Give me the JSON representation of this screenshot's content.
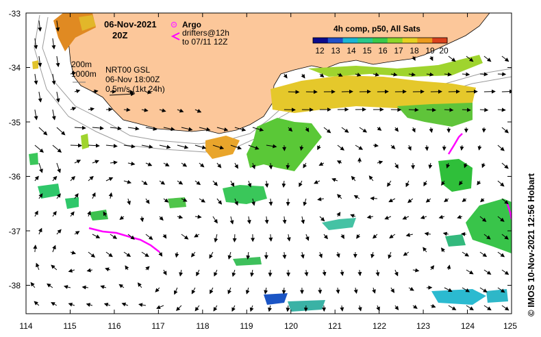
{
  "map": {
    "lon_range": [
      114,
      125
    ],
    "lat_range": [
      -38.5,
      -33
    ],
    "lon_ticks": [
      "114",
      "115",
      "116",
      "117",
      "118",
      "119",
      "120",
      "121",
      "122",
      "123",
      "124",
      "125"
    ],
    "lat_ticks": [
      "-33",
      "-34",
      "-35",
      "-36",
      "-37",
      "-38"
    ],
    "land_color": "#fcc79a",
    "ocean_color": "#ffffff",
    "isobaths": [
      "200m",
      "1000m"
    ]
  },
  "header": {
    "date": "06-Nov-2021",
    "time": "20Z"
  },
  "legend": {
    "argo_label": "Argo",
    "argo_color": "#ff33ff",
    "drifters_line1": "drifters@12h",
    "drifters_line2": "to 07/11 12Z",
    "drifter_color": "#ff00ff"
  },
  "product": {
    "isobath_200": "200m",
    "isobath_1000": "1000m",
    "source": "NRT00 GSL",
    "valid_time": "06-Nov 18:00Z",
    "scale_label": "0.5m/s (1kt 24h)"
  },
  "colorbar": {
    "title": "4h comp, p50, All Sats",
    "tick_labels": [
      "12",
      "13",
      "14",
      "15",
      "16",
      "17",
      "18",
      "19",
      "20"
    ],
    "colors": [
      "#0a0a8c",
      "#1f4fc9",
      "#19b5d4",
      "#27c88a",
      "#39c94a",
      "#8cd629",
      "#e6d11f",
      "#ec9a1c",
      "#d9411c"
    ]
  },
  "credit": "©  IMOS 10-Nov-2021 12:56 Hobart"
}
